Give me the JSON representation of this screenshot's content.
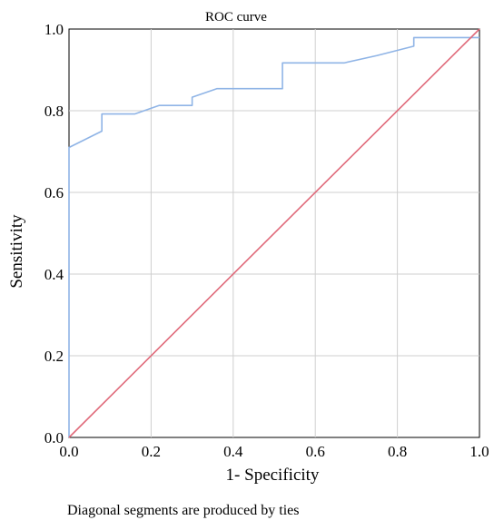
{
  "chart_data": {
    "type": "line",
    "title": "ROC curve",
    "xlabel": "1- Specificity",
    "ylabel": "Sensitivity",
    "xlim": [
      0.0,
      1.0
    ],
    "ylim": [
      0.0,
      1.0
    ],
    "x_ticks": [
      "0.0",
      "0.2",
      "0.4",
      "0.6",
      "0.8",
      "1.0"
    ],
    "y_ticks": [
      "0.0",
      "0.2",
      "0.4",
      "0.6",
      "0.8",
      "1.0"
    ],
    "grid": true,
    "legend": "none",
    "series": [
      {
        "color": "#8fb4e6",
        "points": [
          [
            0.0,
            0.0
          ],
          [
            0.0,
            0.71
          ],
          [
            0.08,
            0.75
          ],
          [
            0.08,
            0.792
          ],
          [
            0.16,
            0.792
          ],
          [
            0.22,
            0.813
          ],
          [
            0.3,
            0.813
          ],
          [
            0.3,
            0.833
          ],
          [
            0.36,
            0.854
          ],
          [
            0.52,
            0.854
          ],
          [
            0.52,
            0.917
          ],
          [
            0.67,
            0.917
          ],
          [
            0.75,
            0.935
          ],
          [
            0.84,
            0.958
          ],
          [
            0.84,
            0.979
          ],
          [
            1.0,
            0.979
          ]
        ]
      },
      {
        "color": "#e06a7a",
        "points": [
          [
            0.0,
            0.0
          ],
          [
            1.0,
            1.0
          ]
        ]
      }
    ]
  },
  "footnote": "Diagonal segments are produced by ties"
}
